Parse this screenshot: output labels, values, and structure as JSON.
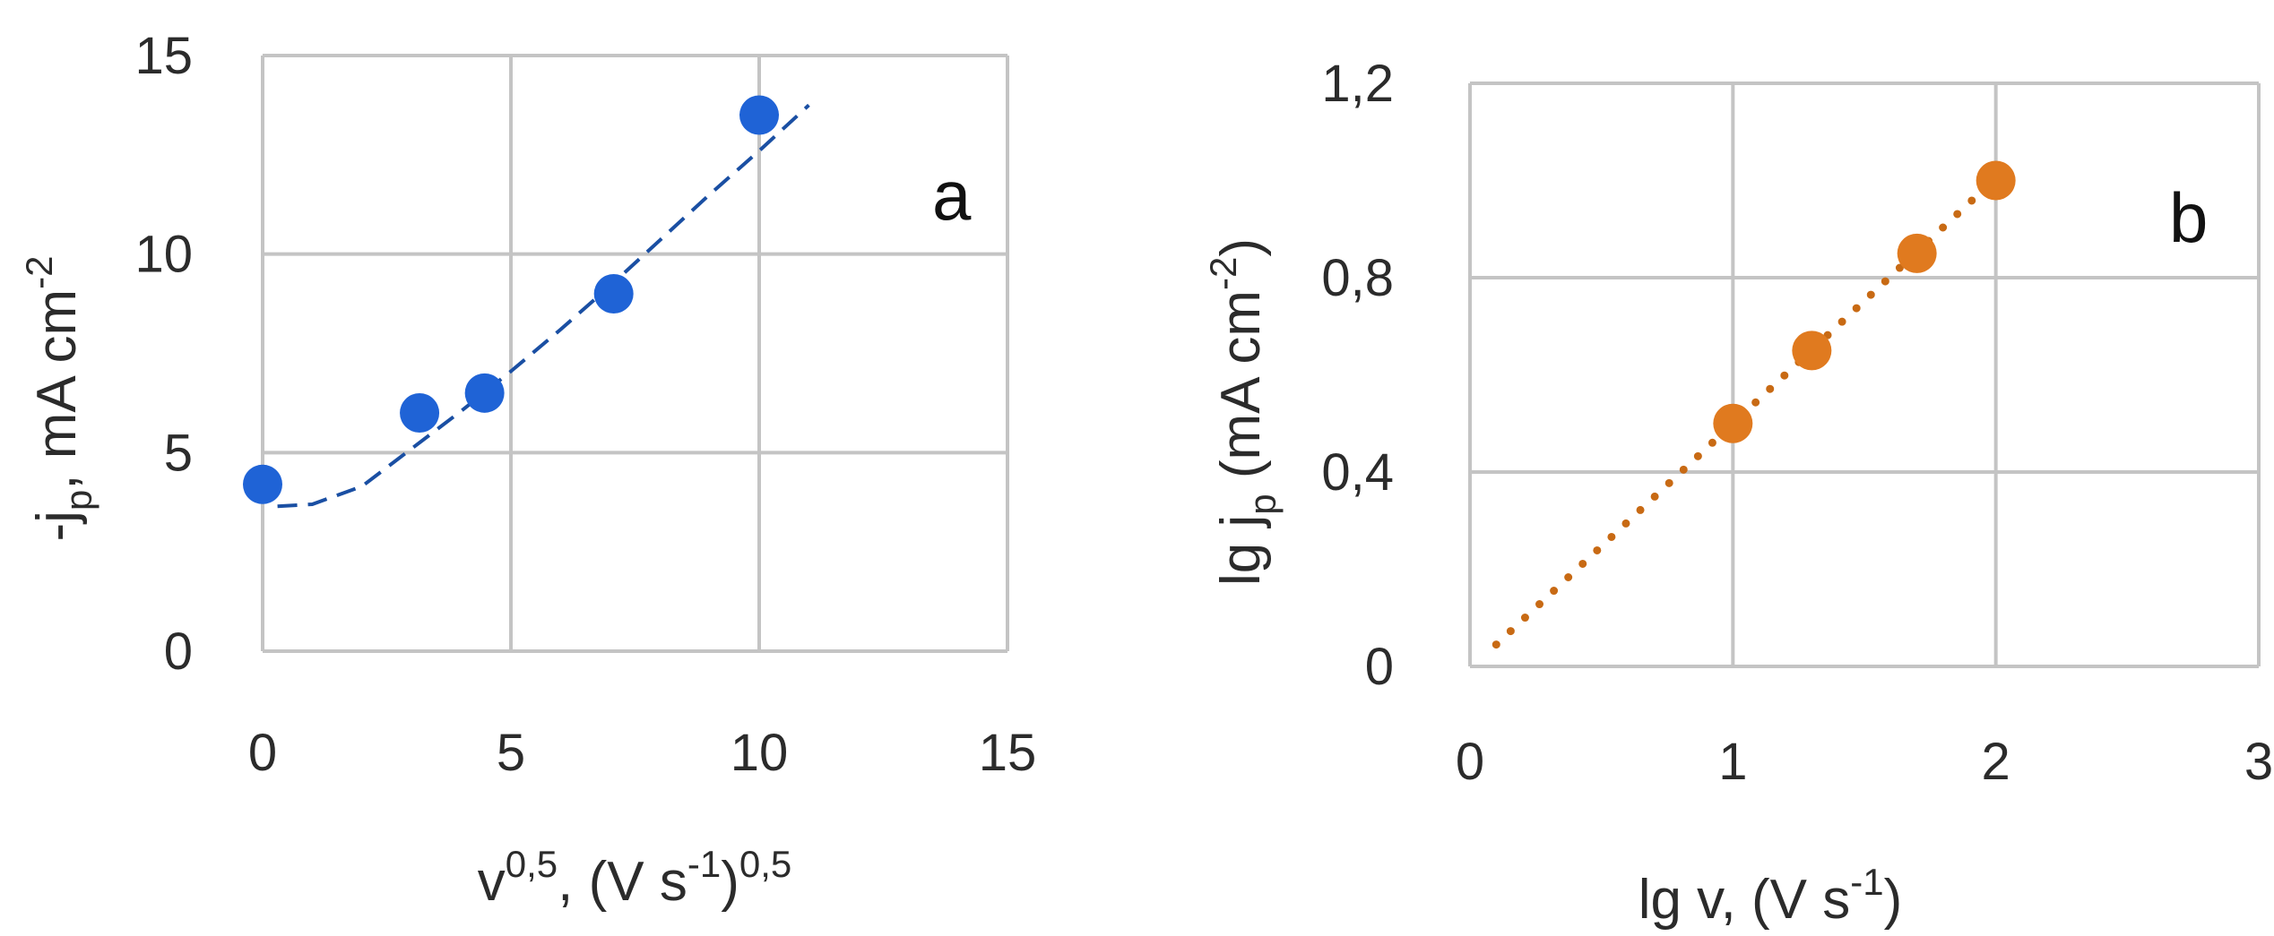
{
  "chart_data": [
    {
      "type": "scatter",
      "panel_label": "a",
      "xlabel": {
        "base": "v",
        "sup1": "0,5",
        "mid": ", (V s",
        "sup2": "-1",
        "close": ")",
        "sup3": "0,5"
      },
      "ylabel": {
        "pre": "-j",
        "sub": "p",
        "mid": ", mA cm",
        "sup": "-2"
      },
      "xlim": [
        0,
        15
      ],
      "ylim": [
        0,
        15
      ],
      "xticks": [
        "0",
        "5",
        "10",
        "15"
      ],
      "yticks": [
        "0",
        "5",
        "10",
        "15"
      ],
      "grid": true,
      "series": [
        {
          "marker_color": "#1f63d6",
          "points": [
            {
              "x": 0,
              "y": 4.2
            },
            {
              "x": 3.16,
              "y": 6.0
            },
            {
              "x": 4.47,
              "y": 6.5
            },
            {
              "x": 7.07,
              "y": 9.0
            },
            {
              "x": 10.0,
              "y": 13.5
            }
          ]
        }
      ],
      "trendline": {
        "style": "dashed",
        "color": "#1a4fa3",
        "points": [
          {
            "x": 0.3,
            "y": 3.65
          },
          {
            "x": 1,
            "y": 3.7
          },
          {
            "x": 2,
            "y": 4.15
          },
          {
            "x": 3,
            "y": 5.1
          },
          {
            "x": 4,
            "y": 6.05
          },
          {
            "x": 5,
            "y": 7.05
          },
          {
            "x": 6,
            "y": 8.1
          },
          {
            "x": 7,
            "y": 9.2
          },
          {
            "x": 8,
            "y": 10.35
          },
          {
            "x": 9,
            "y": 11.5
          },
          {
            "x": 10,
            "y": 12.6
          },
          {
            "x": 11,
            "y": 13.75
          }
        ]
      }
    },
    {
      "type": "scatter",
      "panel_label": "b",
      "xlabel": {
        "pre": "lg v, (V s",
        "sup": "-1",
        "close": ")"
      },
      "ylabel": {
        "pre": "lg j",
        "sub": "p",
        "mid": " (mA cm",
        "sup": "-2",
        "close": ")"
      },
      "xlim": [
        0,
        3
      ],
      "ylim": [
        0,
        1.2
      ],
      "xticks": [
        "0",
        "1",
        "2",
        "3"
      ],
      "yticks": [
        "0",
        "0,4",
        "0,8",
        "1,2"
      ],
      "grid": true,
      "series": [
        {
          "marker_color": "#e07a1f",
          "points": [
            {
              "x": 1.0,
              "y": 0.5
            },
            {
              "x": 1.3,
              "y": 0.65
            },
            {
              "x": 1.7,
              "y": 0.85
            },
            {
              "x": 2.0,
              "y": 1.0
            }
          ]
        }
      ],
      "trendline": {
        "style": "dotted",
        "color": "#c86a14",
        "points": [
          {
            "x": 0.1,
            "y": 0.045
          },
          {
            "x": 2.03,
            "y": 1.02
          }
        ]
      }
    }
  ]
}
